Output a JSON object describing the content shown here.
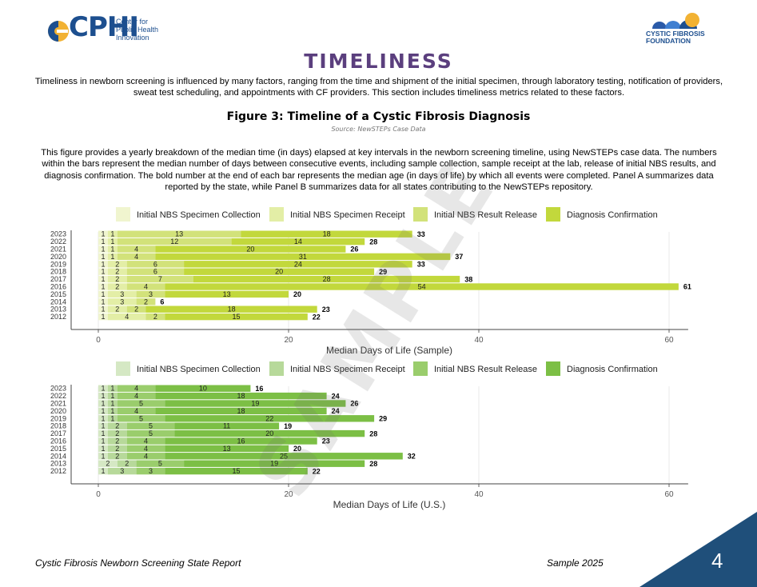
{
  "header": {
    "cphi_logo_text": "CPHI",
    "cphi_subtitle": [
      "Center for",
      "Public Health",
      "Innovation"
    ],
    "cff_logo_text": [
      "CYSTIC FIBROSIS",
      "FOUNDATION"
    ]
  },
  "title": "TIMELINESS",
  "intro": "Timeliness in newborn screening is influenced by many factors, ranging from the time and shipment of the initial specimen, through laboratory testing, notification of providers, sweat test scheduling, and appointments with CF providers. This section includes timeliness metrics related to these factors.",
  "figure_title": "Figure 3: Timeline of a Cystic Fibrosis Diagnosis",
  "figure_source": "Source: NewSTEPs Case Data",
  "description": "This figure provides a yearly breakdown of the median time (in days) elapsed at key intervals in the newborn screening timeline, using NewSTEPs case data. The numbers within the bars represent the median number of days between consecutive events, including sample collection, sample receipt at the lab, release of initial NBS results, and diagnosis confirmation. The bold number at the end of each bar represents the median age (in days of life) by which all events were completed. Panel A summarizes data reported by the state, while Panel B summarizes data for all states contributing to the NewSTEPs repository.",
  "watermark": "SAMPLE",
  "chart_data": [
    {
      "type": "bar",
      "orientation": "horizontal",
      "stacked": true,
      "xlabel": "Median Days of Life (Sample)",
      "xlim": [
        0,
        61
      ],
      "xticks": [
        0,
        20,
        40,
        60
      ],
      "legend_position": "top",
      "categories": [
        "2023",
        "2022",
        "2021",
        "2020",
        "2019",
        "2018",
        "2017",
        "2016",
        "2015",
        "2014",
        "2013",
        "2012"
      ],
      "series": [
        {
          "name": "Initial NBS Specimen Collection",
          "color": "#f0f5cf",
          "values": [
            1,
            1,
            1,
            1,
            1,
            1,
            1,
            1,
            1,
            1,
            1,
            1
          ]
        },
        {
          "name": "Initial NBS Specimen Receipt",
          "color": "#e3eea6",
          "values": [
            1,
            1,
            1,
            1,
            2,
            2,
            2,
            2,
            3,
            3,
            2,
            4
          ]
        },
        {
          "name": "Initial NBS Result Release",
          "color": "#d2e27a",
          "values": [
            13,
            12,
            4,
            4,
            6,
            6,
            7,
            4,
            3,
            2,
            2,
            2
          ]
        },
        {
          "name": "Diagnosis Confirmation",
          "color": "#c2d83c",
          "values": [
            18,
            14,
            20,
            31,
            24,
            20,
            28,
            54,
            13,
            0,
            18,
            15
          ]
        }
      ],
      "totals": [
        33,
        28,
        26,
        37,
        33,
        29,
        38,
        61,
        20,
        6,
        23,
        22
      ]
    },
    {
      "type": "bar",
      "orientation": "horizontal",
      "stacked": true,
      "xlabel": "Median Days of Life (U.S.)",
      "xlim": [
        0,
        61
      ],
      "xticks": [
        0,
        20,
        40,
        60
      ],
      "legend_position": "top",
      "categories": [
        "2023",
        "2022",
        "2021",
        "2020",
        "2019",
        "2018",
        "2017",
        "2016",
        "2015",
        "2014",
        "2013",
        "2012"
      ],
      "series": [
        {
          "name": "Initial NBS Specimen Collection",
          "color": "#d5e8c4",
          "values": [
            1,
            1,
            1,
            1,
            1,
            1,
            1,
            1,
            1,
            1,
            2,
            1
          ]
        },
        {
          "name": "Initial NBS Specimen Receipt",
          "color": "#b7d99a",
          "values": [
            1,
            1,
            1,
            1,
            1,
            2,
            2,
            2,
            2,
            2,
            2,
            3
          ]
        },
        {
          "name": "Initial NBS Result Release",
          "color": "#9acd6c",
          "values": [
            4,
            4,
            5,
            4,
            5,
            5,
            5,
            4,
            4,
            4,
            5,
            3
          ]
        },
        {
          "name": "Diagnosis Confirmation",
          "color": "#7cbf45",
          "values": [
            10,
            18,
            19,
            18,
            22,
            11,
            20,
            16,
            13,
            25,
            19,
            15
          ]
        }
      ],
      "totals": [
        16,
        24,
        26,
        24,
        29,
        19,
        28,
        23,
        20,
        32,
        28,
        22
      ]
    }
  ],
  "footer": {
    "left": "Cystic Fibrosis Newborn Screening State Report",
    "right": "Sample 2025",
    "page_number": "4"
  }
}
